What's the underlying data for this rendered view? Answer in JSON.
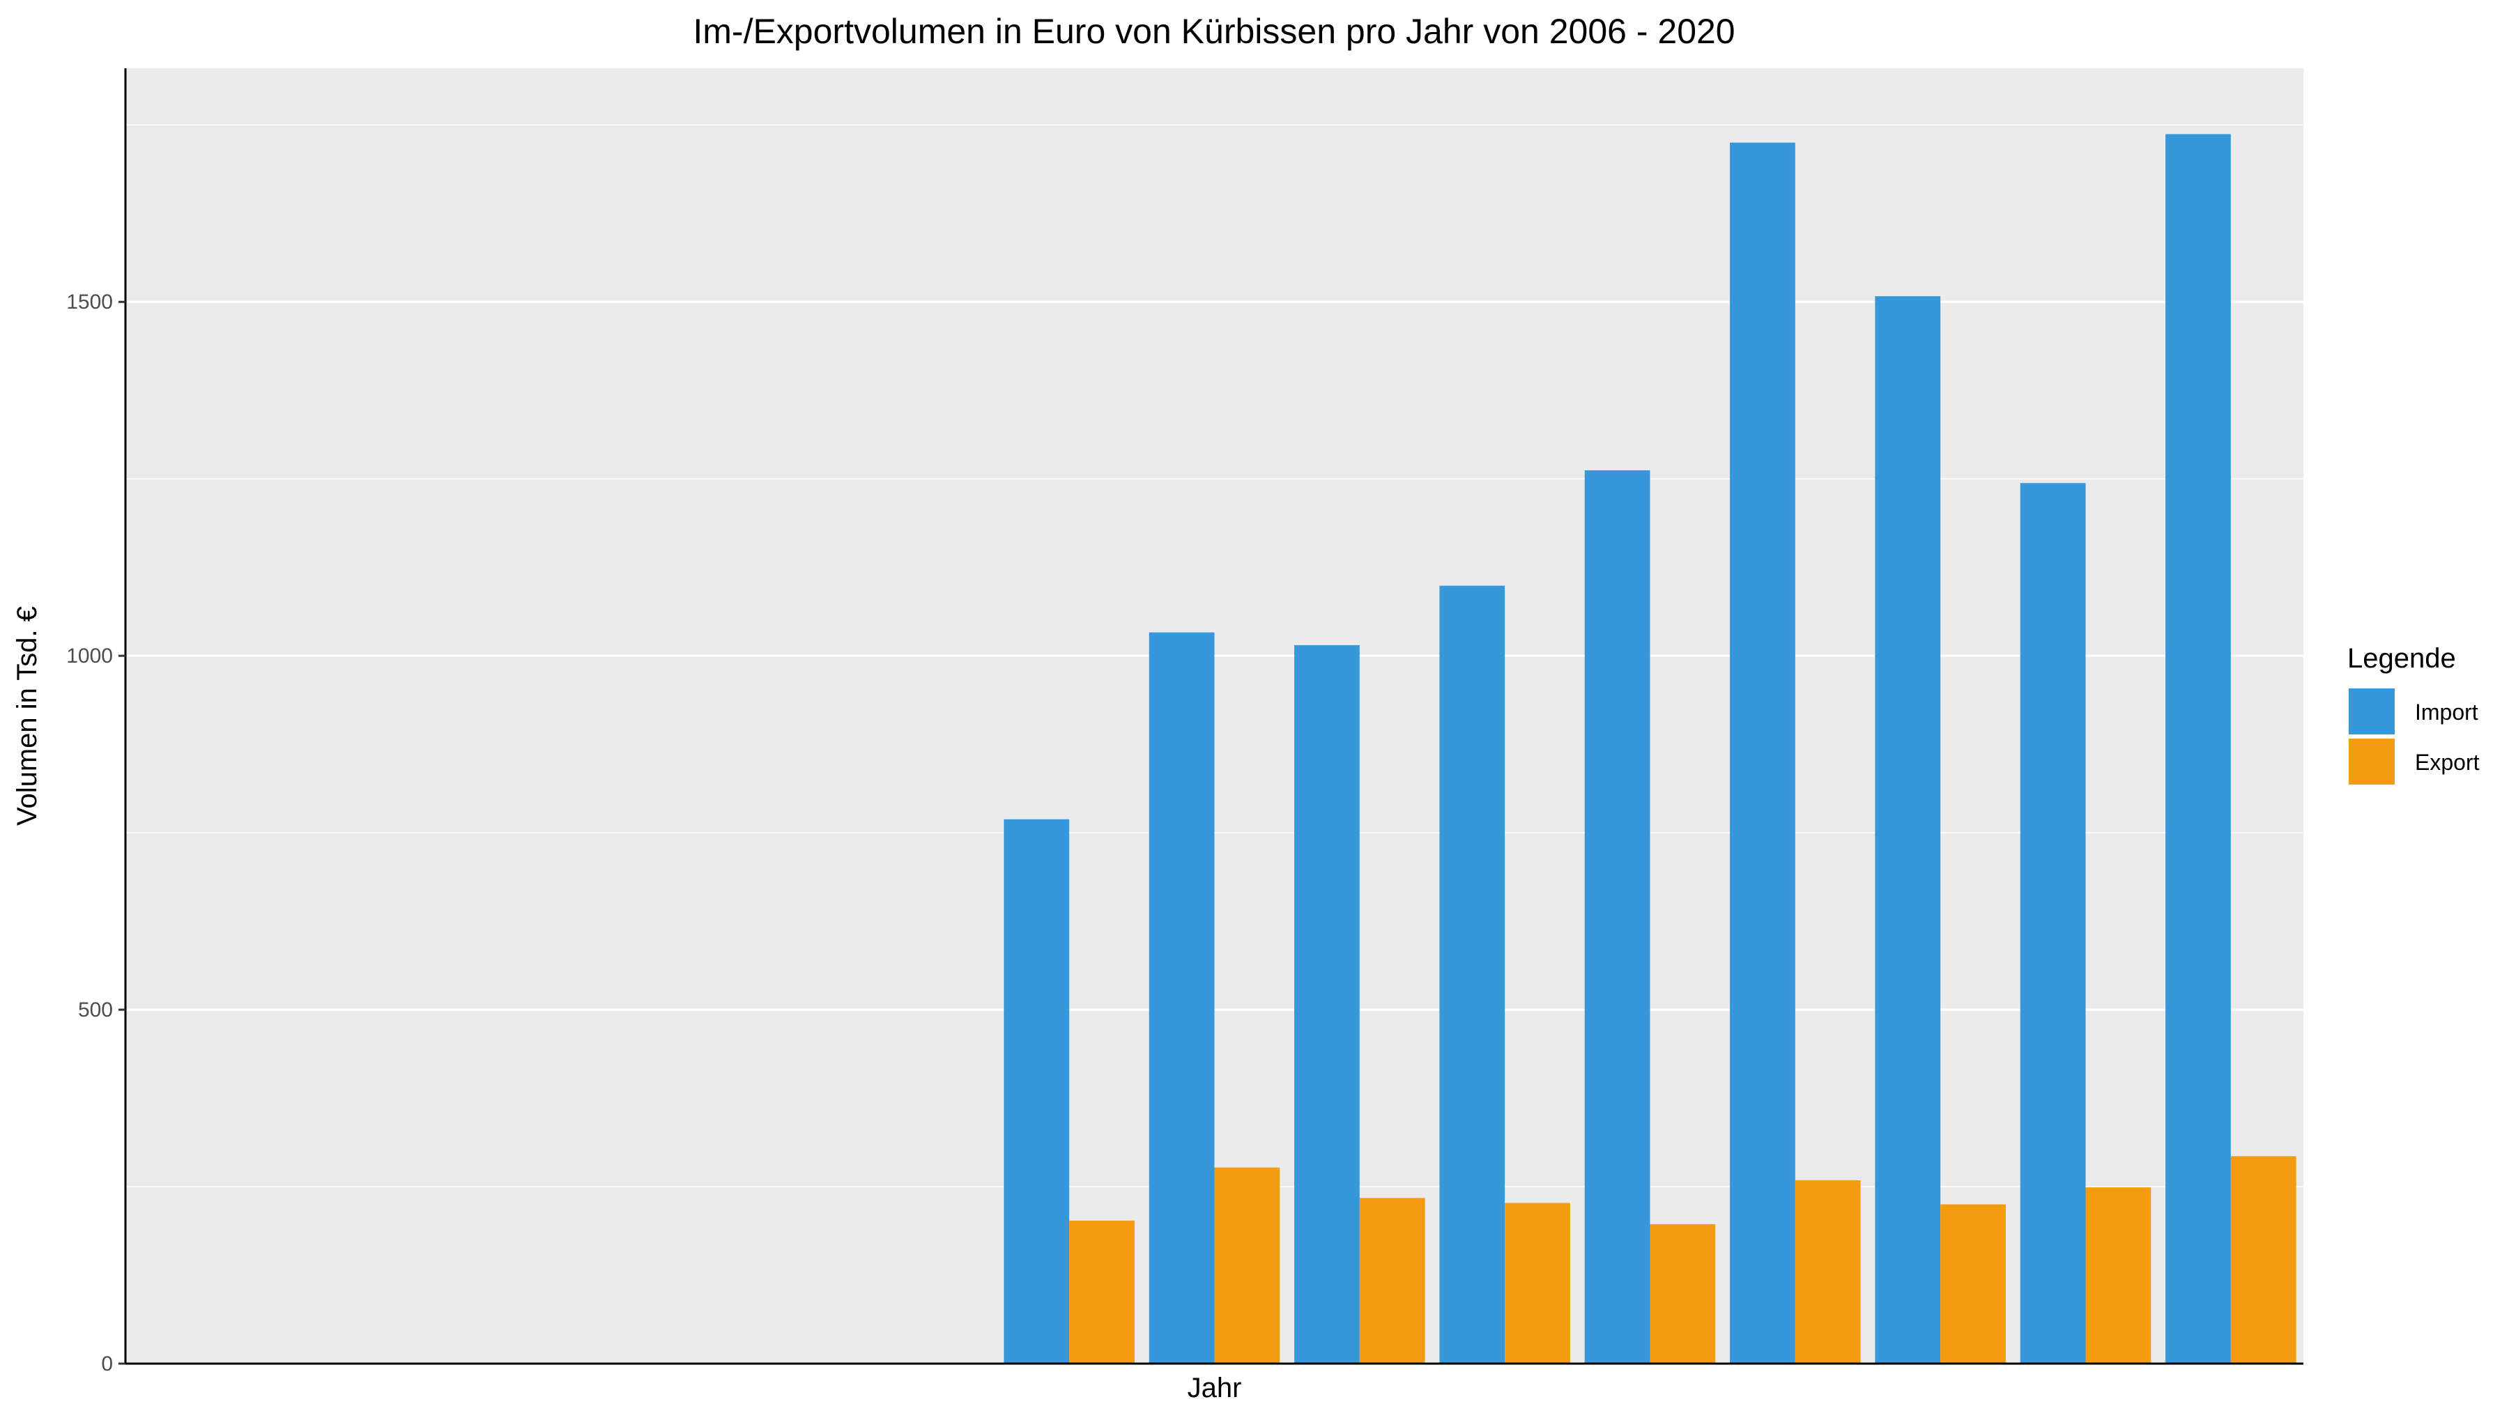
{
  "chart_data": {
    "type": "bar",
    "title": "Im-/Exportvolumen in Euro von Kürbissen pro Jahr von 2006 - 2020",
    "xlabel": "Jahr",
    "ylabel": "Volumen in Tsd. €",
    "ylim": [
      0,
      1830
    ],
    "yticks": [
      0,
      500,
      1000,
      1500
    ],
    "grid": true,
    "legend": {
      "title": "Legende",
      "placement": "right"
    },
    "n_slots": 15,
    "first_visible_slot": 6,
    "series": [
      {
        "name": "Import",
        "color": "#3797DB",
        "values": [
          769,
          1033,
          1015,
          1099,
          1262,
          1725,
          1508,
          1244,
          1737
        ]
      },
      {
        "name": "Export",
        "color": "#F39C12",
        "values": [
          202,
          277,
          234,
          227,
          197,
          259,
          225,
          249,
          293
        ]
      }
    ],
    "colors": {
      "panel_background": "#EBEBEB",
      "gridline": "#FFFFFF",
      "axis_line": "#000000"
    }
  }
}
